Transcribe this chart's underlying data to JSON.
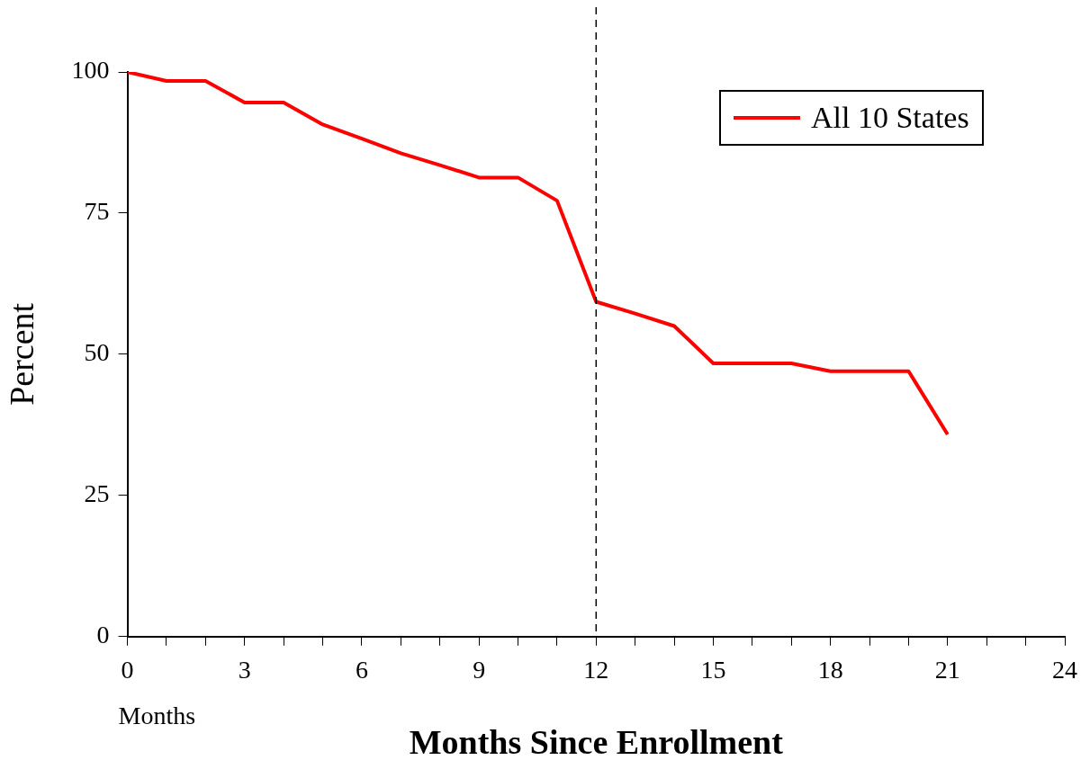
{
  "chart_data": {
    "type": "line",
    "xlabel": "Months Since Enrollment",
    "ylabel": "Percent",
    "x": [
      0,
      1,
      2,
      3,
      4,
      5,
      6,
      7,
      8,
      9,
      10,
      11,
      12,
      13,
      14,
      15,
      16,
      17,
      18,
      19,
      20,
      21
    ],
    "series": [
      {
        "name": "All 10 States",
        "color": "#ff0000",
        "values": [
          100,
          98.4,
          98.4,
          94.6,
          94.6,
          90.7,
          88.2,
          85.6,
          83.5,
          81.3,
          81.3,
          77.2,
          59.3,
          57.2,
          55.0,
          48.4,
          48.4,
          48.4,
          47.0,
          47.0,
          47.0,
          35.8
        ]
      }
    ],
    "xlim": [
      0,
      24
    ],
    "xticks": [
      0,
      {
        "value": 1,
        "label": null
      },
      {
        "value": 2,
        "label": null
      },
      3,
      {
        "value": 4,
        "label": null
      },
      {
        "value": 5,
        "label": null
      },
      6,
      {
        "value": 7,
        "label": null
      },
      {
        "value": 8,
        "label": null
      },
      9,
      {
        "value": 10,
        "label": null
      },
      {
        "value": 11,
        "label": null
      },
      12,
      {
        "value": 13,
        "label": null
      },
      {
        "value": 14,
        "label": null
      },
      15,
      {
        "value": 16,
        "label": null
      },
      {
        "value": 17,
        "label": null
      },
      18,
      {
        "value": 19,
        "label": null
      },
      {
        "value": 20,
        "label": null
      },
      21,
      {
        "value": 22,
        "label": null
      },
      {
        "value": 23,
        "label": null
      },
      24
    ],
    "ylim": [
      0,
      100
    ],
    "yticks": [
      0,
      25,
      50,
      75,
      100
    ],
    "ref_lines": [
      {
        "axis": "x",
        "value": 12,
        "color": "#000000",
        "line_style": "dashed"
      }
    ],
    "annotations": [
      "Months"
    ],
    "grid": false,
    "legend": "top right",
    "marker": "none",
    "line_style": "solid"
  }
}
